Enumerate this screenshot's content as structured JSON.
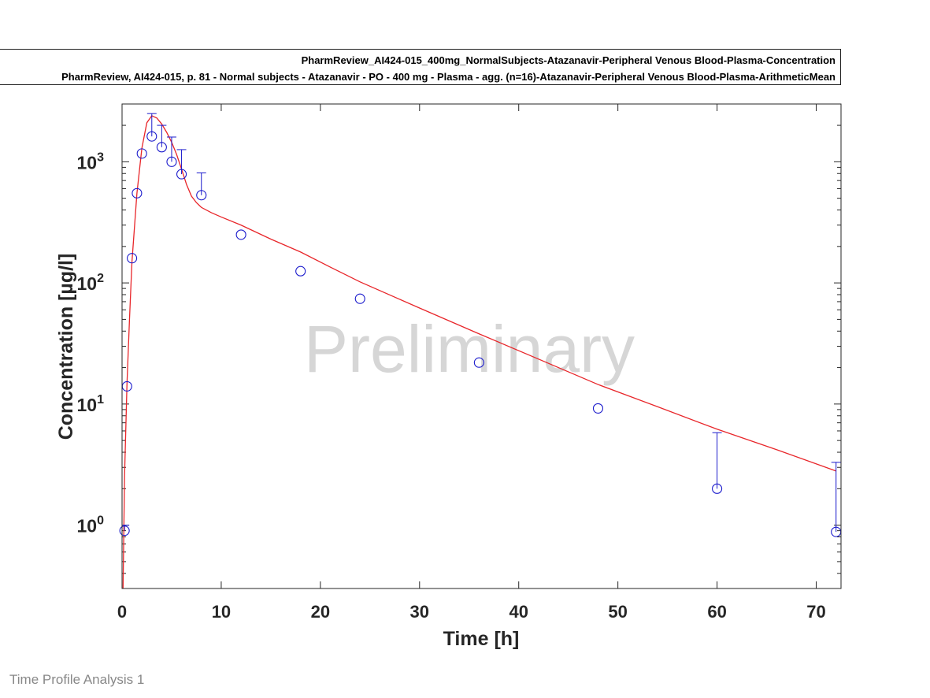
{
  "footer": {
    "label": "Time Profile Analysis 1"
  },
  "watermark": "Preliminary",
  "chart_data": {
    "type": "line",
    "xlabel": "Time [h]",
    "ylabel": "Concentration [µg/l]",
    "xlim": [
      0,
      72.5
    ],
    "ylim": [
      0.3,
      3000
    ],
    "yscale": "log",
    "grid": false,
    "legend_position": "top",
    "x_ticks": [
      0,
      10,
      20,
      30,
      40,
      50,
      60,
      70
    ],
    "y_ticks": [
      {
        "value": 1,
        "base": "10",
        "exp": "0"
      },
      {
        "value": 10,
        "base": "10",
        "exp": "1"
      },
      {
        "value": 100,
        "base": "10",
        "exp": "2"
      },
      {
        "value": 1000,
        "base": "10",
        "exp": "3"
      }
    ],
    "series": [
      {
        "name": "PharmReview_AI424-015_400mg_NormalSubjects-Atazanavir-Peripheral Venous Blood-Plasma-Concentration",
        "type": "line",
        "color": "#e8262a",
        "x": [
          0.1,
          0.25,
          0.5,
          0.75,
          1.0,
          1.5,
          2.0,
          2.5,
          3.0,
          3.5,
          4.0,
          4.5,
          5.0,
          5.5,
          6.0,
          6.5,
          7.0,
          7.5,
          8.0,
          9.0,
          10.0,
          12.0,
          15.0,
          18.0,
          21.0,
          24.0,
          30.0,
          36.0,
          42.0,
          48.0,
          54.0,
          60.0,
          66.0,
          72.0
        ],
        "y": [
          0.3,
          2.5,
          15,
          50,
          150,
          550,
          1300,
          2100,
          2400,
          2300,
          2050,
          1750,
          1450,
          1150,
          870,
          650,
          520,
          460,
          420,
          380,
          350,
          300,
          230,
          180,
          135,
          102,
          62,
          38,
          23.5,
          14.5,
          9.5,
          6.2,
          4.2,
          2.8
        ]
      },
      {
        "name": "PharmReview, AI424-015, p. 81 - Normal subjects - Atazanavir - PO - 400 mg - Plasma - agg. (n=16)-Atazanavir-Peripheral Venous Blood-Plasma-ArithmeticMean",
        "type": "scatter",
        "color": "#1a1acc",
        "x": [
          0.25,
          0.5,
          1.0,
          1.5,
          2.0,
          3.0,
          4.0,
          5.0,
          6.0,
          8.0,
          12.0,
          18.0,
          24.0,
          36.0,
          48.0,
          60.0,
          72.0
        ],
        "y": [
          0.9,
          14,
          160,
          550,
          1170,
          1620,
          1320,
          1000,
          790,
          530,
          250,
          125,
          74,
          22,
          9.2,
          2.0,
          0.88
        ],
        "error_upper": [
          1.0,
          null,
          null,
          null,
          null,
          2500,
          2000,
          1600,
          1260,
          810,
          null,
          null,
          null,
          null,
          null,
          5.8,
          3.3
        ]
      }
    ]
  }
}
